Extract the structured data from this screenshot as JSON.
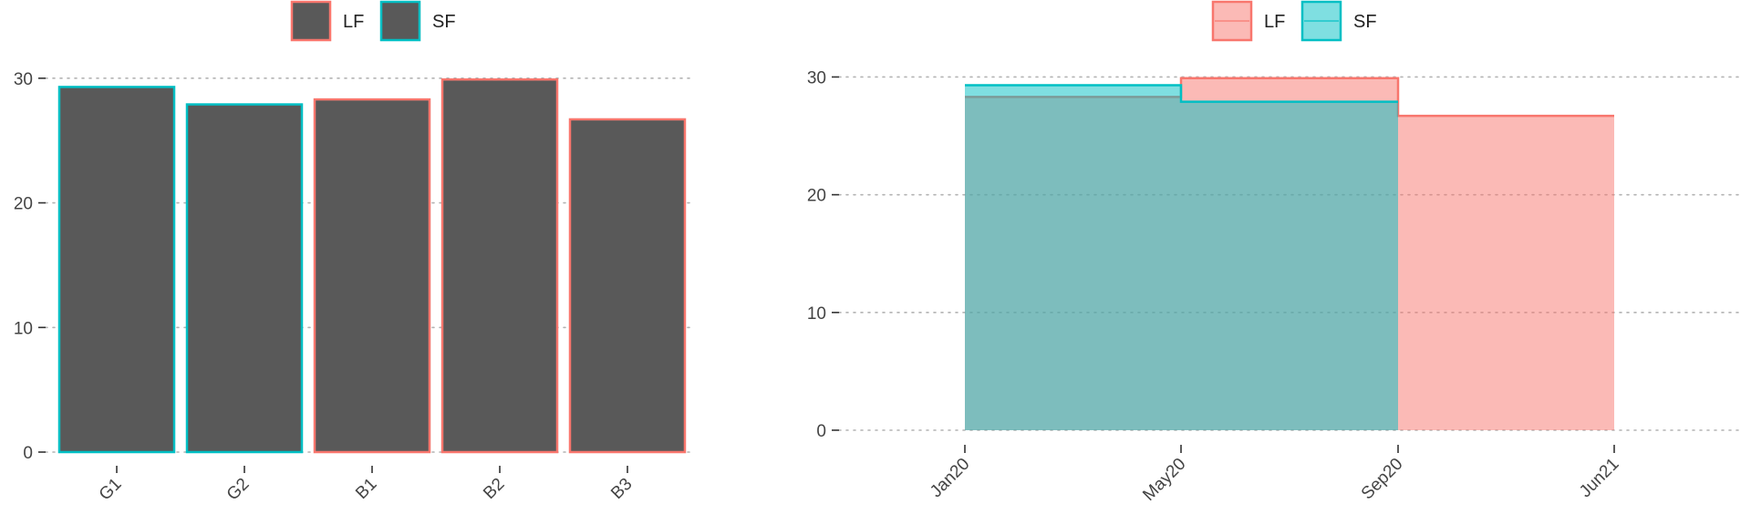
{
  "colors": {
    "LF": "#F8766D",
    "SF": "#00BFC4",
    "bar_fill": "#595959"
  },
  "chart_data": [
    {
      "type": "bar",
      "legend": {
        "entries": [
          "LF",
          "SF"
        ],
        "position": "top"
      },
      "categories": [
        "G1",
        "G2",
        "B1",
        "B2",
        "B3"
      ],
      "values": [
        29.3,
        27.9,
        28.3,
        29.9,
        26.7
      ],
      "group": [
        "SF",
        "SF",
        "LF",
        "LF",
        "LF"
      ],
      "ylim": [
        0,
        30.5
      ],
      "yticks": [
        0,
        10,
        20,
        30
      ],
      "grid": "horizontal dotted"
    },
    {
      "type": "area",
      "step": true,
      "legend": {
        "entries": [
          "LF",
          "SF"
        ],
        "position": "top"
      },
      "xticks": [
        "Jan20",
        "May20",
        "Sep20",
        "Jun21"
      ],
      "yticks": [
        0,
        10,
        20,
        30
      ],
      "ylim": [
        0,
        30.5
      ],
      "grid": "horizontal dotted",
      "series": [
        {
          "name": "LF",
          "segments": [
            {
              "from": "Jan20",
              "to": "May20",
              "value": 28.3
            },
            {
              "from": "May20",
              "to": "Sep20",
              "value": 29.9
            },
            {
              "from": "Sep20",
              "to": "Jun21",
              "value": 26.7
            }
          ]
        },
        {
          "name": "SF",
          "segments": [
            {
              "from": "Jan20",
              "to": "May20",
              "value": 29.3
            },
            {
              "from": "May20",
              "to": "Sep20",
              "value": 27.9
            }
          ]
        }
      ]
    }
  ]
}
